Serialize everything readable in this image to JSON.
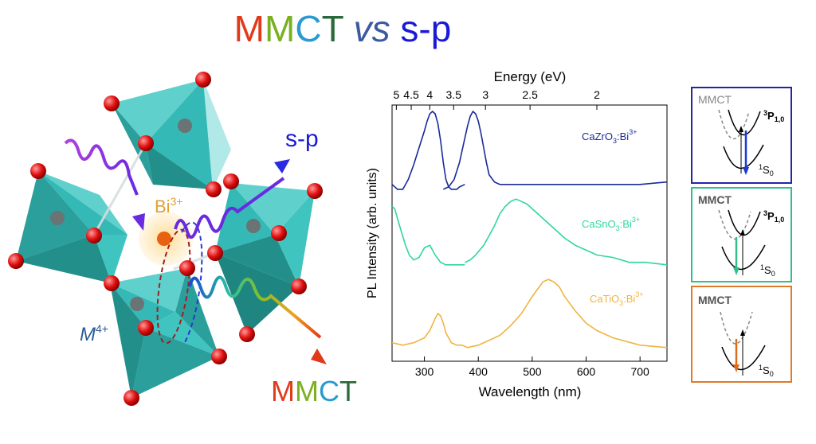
{
  "title": {
    "mmct": [
      "M",
      "M",
      "C",
      "T"
    ],
    "vs": "vs",
    "sp": "s-p"
  },
  "colors": {
    "sp_blue": "#1a1ad6",
    "cazro3": "#1a2a9a",
    "casno3": "#2fd79a",
    "catio3": "#f0b440",
    "octahedron": "#34b9b7",
    "oxygen": "#e01010",
    "mmct_orange": "#e06a1a"
  },
  "structure": {
    "bi_label": "Bi",
    "bi_sup": "3+",
    "m_label": "M",
    "m_sup": "4+",
    "sp_label": "s-p",
    "mmct_label": [
      "M",
      "M",
      "C",
      "T"
    ]
  },
  "chart_data": {
    "type": "line",
    "xlabel": "Wavelength (nm)",
    "ylabel": "PL Intensity (arb. units)",
    "top_axis_label": "Energy (eV)",
    "xlim": [
      240,
      750
    ],
    "x_ticks": [
      300,
      400,
      500,
      600,
      700
    ],
    "top_ticks": [
      "5",
      "4.5",
      "4",
      "3.5",
      "3",
      "2.5",
      "2"
    ],
    "top_tick_ev": [
      5,
      4.5,
      4,
      3.5,
      3,
      2.5,
      2
    ],
    "series": [
      {
        "name": "CaZrO3:Bi3+",
        "label_main": "CaZrO",
        "label_sub": "3",
        "label_mid": ":Bi",
        "label_sup": "3+",
        "color": "#1a2a9a",
        "segments": [
          {
            "x": [
              240,
              250,
              260,
              270,
              280,
              290,
              300,
              305,
              310,
              315,
              320,
              325,
              330,
              335,
              340,
              345,
              350,
              355,
              360,
              365,
              375
            ],
            "y": [
              0.7,
              0.68,
              0.68,
              0.72,
              0.78,
              0.85,
              0.92,
              0.96,
              0.99,
              1.0,
              0.99,
              0.95,
              0.88,
              0.79,
              0.72,
              0.69,
              0.68,
              0.68,
              0.68,
              0.69,
              0.7
            ]
          },
          {
            "x": [
              335,
              345,
              355,
              365,
              372,
              380,
              385,
              390,
              395,
              400,
              405,
              410,
              415,
              420,
              430,
              440,
              460,
              500,
              550,
              600,
              650,
              700,
              750
            ],
            "y": [
              0.68,
              0.69,
              0.72,
              0.79,
              0.86,
              0.94,
              0.98,
              1.0,
              0.99,
              0.96,
              0.91,
              0.85,
              0.79,
              0.74,
              0.71,
              0.7,
              0.7,
              0.7,
              0.7,
              0.7,
              0.7,
              0.7,
              0.71
            ]
          }
        ]
      },
      {
        "name": "CaSnO3:Bi3+",
        "label_main": "CaSnO",
        "label_sub": "3",
        "label_mid": ":Bi",
        "label_sup": "3+",
        "color": "#2fd79a",
        "segments": [
          {
            "x": [
              240,
              245,
              250,
              258,
              265,
              272,
              280,
              290,
              300,
              310,
              320,
              330,
              340,
              350,
              360,
              375
            ],
            "y": [
              0.61,
              0.6,
              0.56,
              0.5,
              0.45,
              0.41,
              0.39,
              0.4,
              0.44,
              0.45,
              0.41,
              0.38,
              0.37,
              0.37,
              0.37,
              0.37
            ]
          },
          {
            "x": [
              375,
              385,
              395,
              410,
              420,
              430,
              440,
              450,
              460,
              470,
              480,
              490,
              500,
              520,
              540,
              560,
              580,
              600,
              620,
              650,
              680,
              710,
              750
            ],
            "y": [
              0.38,
              0.39,
              0.41,
              0.45,
              0.49,
              0.53,
              0.58,
              0.61,
              0.63,
              0.64,
              0.63,
              0.62,
              0.6,
              0.56,
              0.52,
              0.48,
              0.45,
              0.43,
              0.41,
              0.4,
              0.38,
              0.38,
              0.37
            ]
          }
        ]
      },
      {
        "name": "CaTiO3:Bi3+",
        "label_main": "CaTiO",
        "label_sub": "3",
        "label_mid": ":Bi",
        "label_sup": "3+",
        "color": "#f0b440",
        "segments": [
          {
            "x": [
              240,
              260,
              280,
              300,
              310,
              320,
              325,
              330,
              335,
              340,
              350,
              360,
              370,
              380,
              400,
              420,
              440,
              460,
              480,
              500,
              510,
              520,
              530,
              540,
              550,
              560,
              580,
              600,
              620,
              650,
              700,
              750
            ],
            "y": [
              0.05,
              0.04,
              0.05,
              0.07,
              0.1,
              0.15,
              0.17,
              0.16,
              0.13,
              0.09,
              0.05,
              0.04,
              0.04,
              0.03,
              0.04,
              0.06,
              0.08,
              0.12,
              0.17,
              0.24,
              0.27,
              0.3,
              0.31,
              0.3,
              0.28,
              0.24,
              0.18,
              0.13,
              0.1,
              0.07,
              0.04,
              0.03
            ]
          }
        ]
      }
    ]
  },
  "diagrams": [
    {
      "mmct": "MMCT",
      "state": "3",
      "state_sym": "P",
      "state_sub": "1,0",
      "ground": "1",
      "ground_sym": "S",
      "ground_sub": "0",
      "border": "#2424a6",
      "arrow": "#1a3ad6",
      "mmct_color": "#888888"
    },
    {
      "mmct": "MMCT",
      "state": "3",
      "state_sym": "P",
      "state_sub": "1,0",
      "ground": "1",
      "ground_sym": "S",
      "ground_sub": "0",
      "border": "#2fc08a",
      "arrow": "#2fc08a",
      "mmct_color": "#555555"
    },
    {
      "mmct": "MMCT",
      "state": "",
      "state_sym": "",
      "state_sub": "",
      "ground": "1",
      "ground_sym": "S",
      "ground_sub": "0",
      "border": "#e07a2a",
      "arrow": "#e06a1a",
      "mmct_color": "#555555"
    }
  ]
}
